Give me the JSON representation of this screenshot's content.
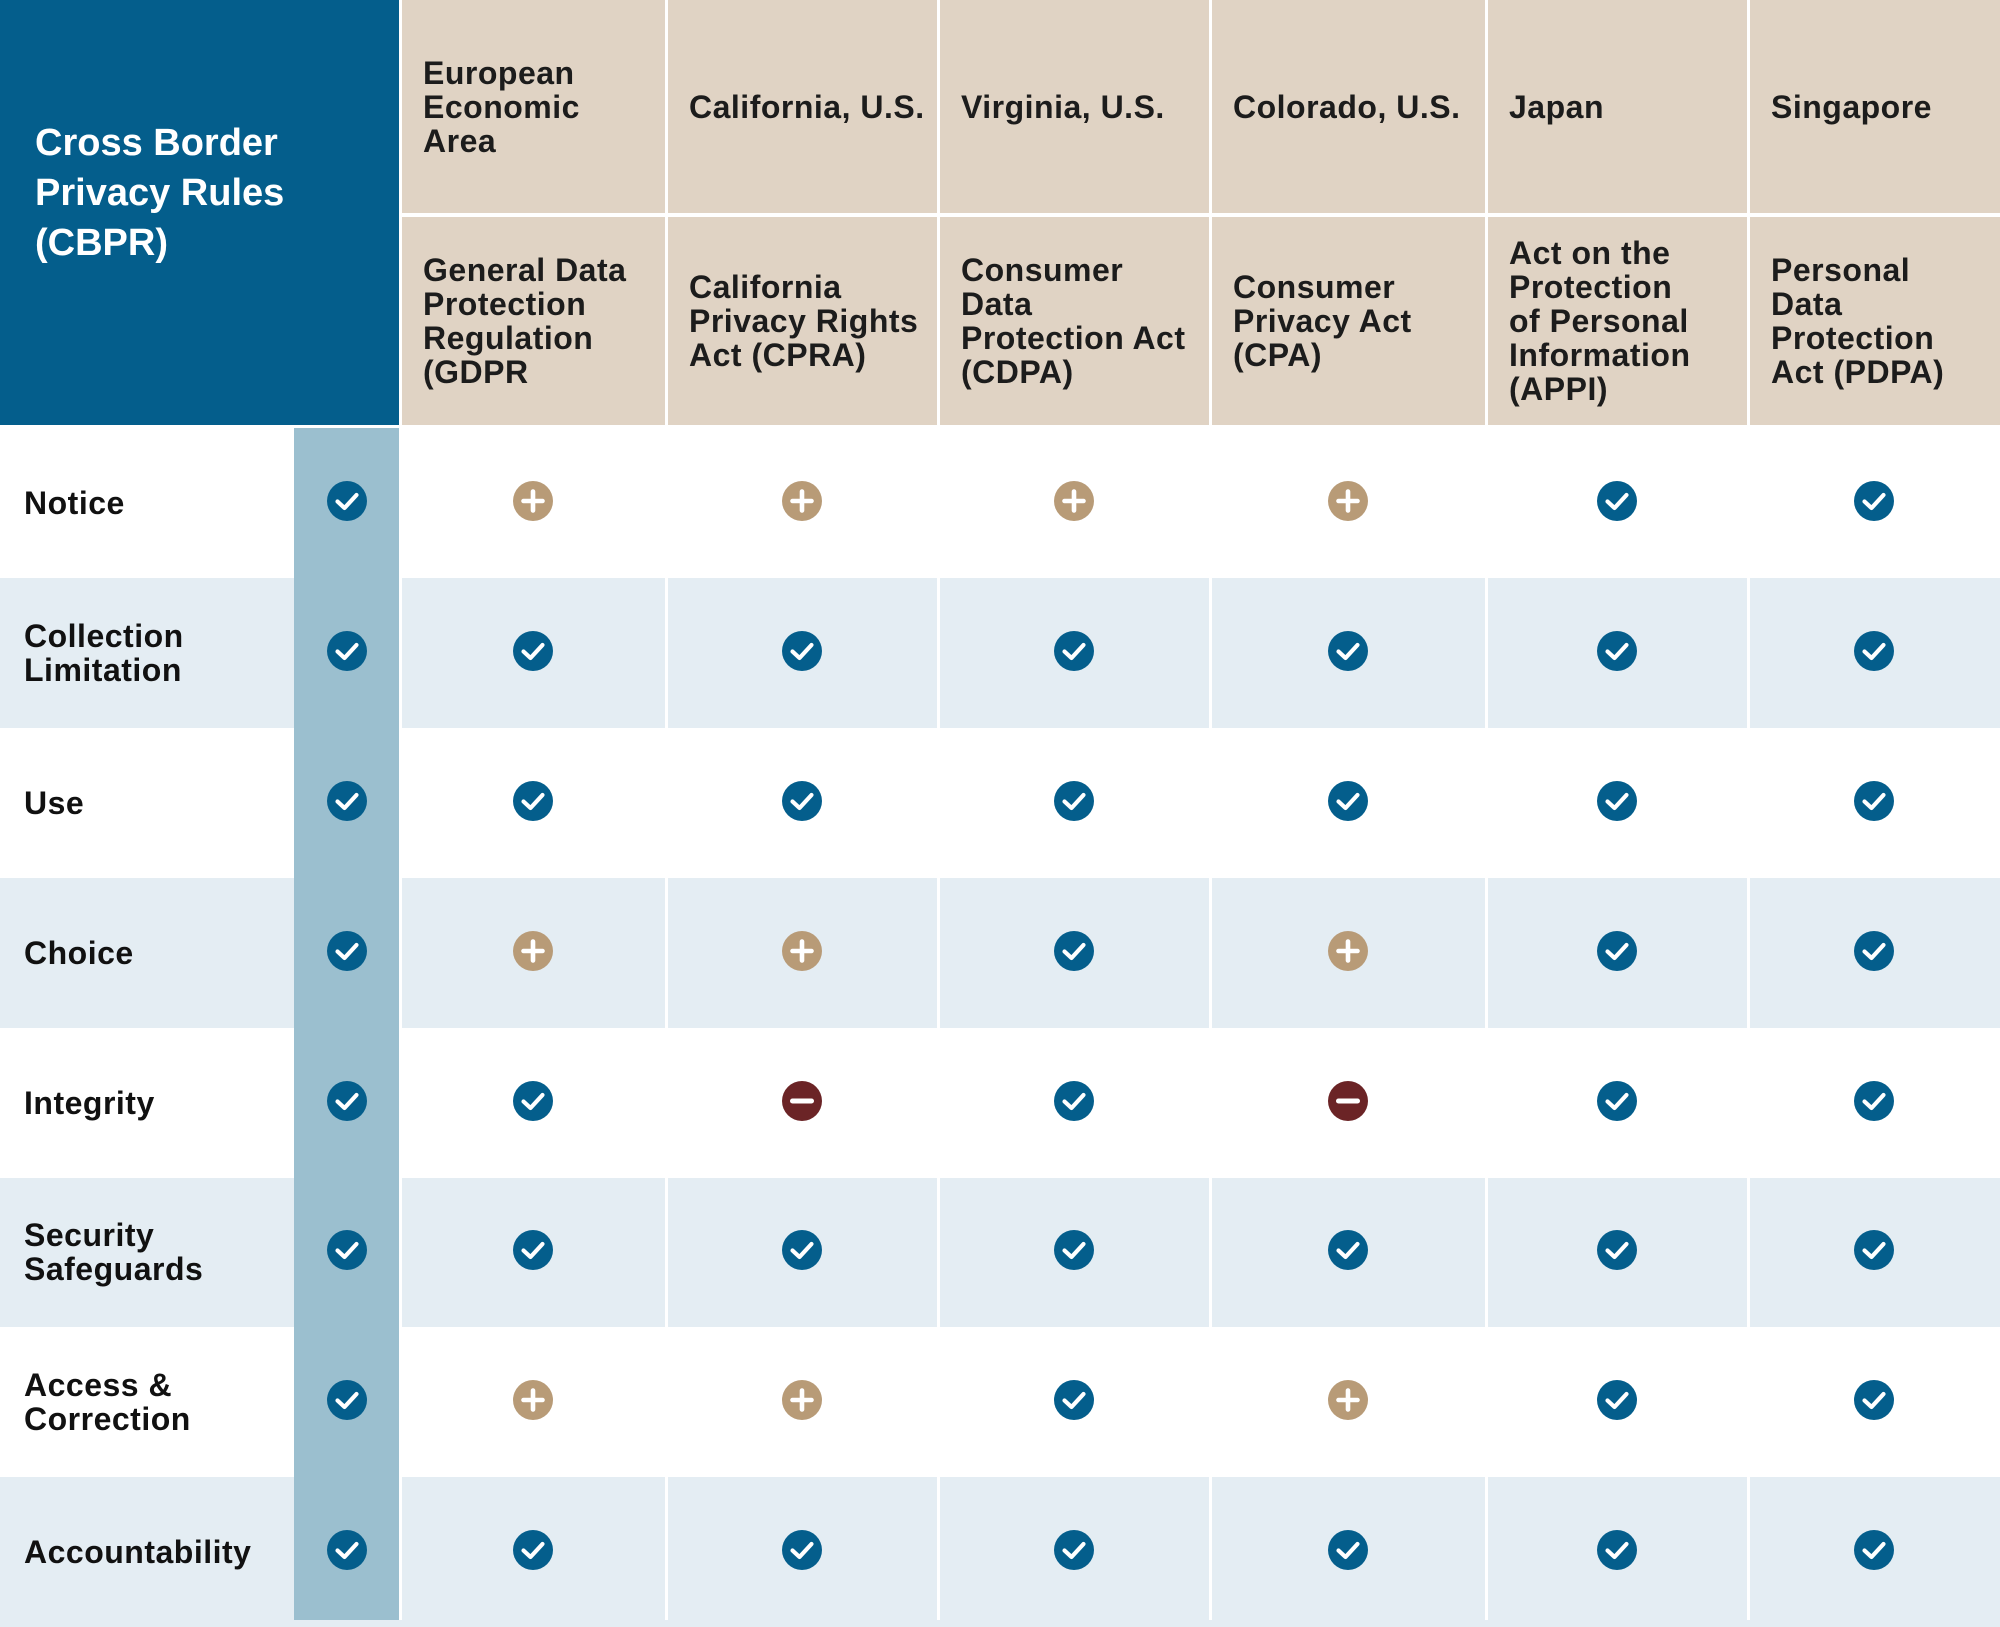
{
  "colors": {
    "cbpr_header_bg": "#045e8c",
    "cbpr_column_bg": "#9bbfcf",
    "header_bg": "#e0d3c4",
    "row_alt_bg": "#e4edf3",
    "row_bg": "#ffffff",
    "check": "#045e8c",
    "plus": "#b89b77",
    "minus": "#6b2426"
  },
  "icons": {
    "check": "check-circle-icon",
    "plus": "plus-circle-icon",
    "minus": "minus-circle-icon"
  },
  "chart_data": {
    "type": "table",
    "title": "Cross Border\nPrivacy Rules\n(CBPR)",
    "columns": [
      {
        "region": "European\nEconomic\nArea",
        "law": "General Data\nProtection\nRegulation\n(GDPR"
      },
      {
        "region": "California, U.S.",
        "law": "California\nPrivacy Rights\nAct (CPRA)"
      },
      {
        "region": "Virginia, U.S.",
        "law": "Consumer\nData\nProtection Act\n(CDPA)"
      },
      {
        "region": "Colorado, U.S.",
        "law": "Consumer\nPrivacy Act\n(CPA)"
      },
      {
        "region": "Japan",
        "law": "Act on the\nProtection\nof Personal\nInformation\n(APPI)"
      },
      {
        "region": "Singapore",
        "law": "Personal\nData\nProtection\nAct (PDPA)"
      }
    ],
    "rows": [
      {
        "label": "Notice",
        "cbpr": "check",
        "values": [
          "plus",
          "plus",
          "plus",
          "plus",
          "check",
          "check"
        ]
      },
      {
        "label": "Collection\nLimitation",
        "cbpr": "check",
        "values": [
          "check",
          "check",
          "check",
          "check",
          "check",
          "check"
        ]
      },
      {
        "label": "Use",
        "cbpr": "check",
        "values": [
          "check",
          "check",
          "check",
          "check",
          "check",
          "check"
        ]
      },
      {
        "label": "Choice",
        "cbpr": "check",
        "values": [
          "plus",
          "plus",
          "check",
          "plus",
          "check",
          "check"
        ]
      },
      {
        "label": "Integrity",
        "cbpr": "check",
        "values": [
          "check",
          "minus",
          "check",
          "minus",
          "check",
          "check"
        ]
      },
      {
        "label": "Security\nSafeguards",
        "cbpr": "check",
        "values": [
          "check",
          "check",
          "check",
          "check",
          "check",
          "check"
        ]
      },
      {
        "label": "Access &\nCorrection",
        "cbpr": "check",
        "values": [
          "plus",
          "plus",
          "check",
          "plus",
          "check",
          "check"
        ]
      },
      {
        "label": "Accountability",
        "cbpr": "check",
        "values": [
          "check",
          "check",
          "check",
          "check",
          "check",
          "check"
        ]
      }
    ]
  }
}
